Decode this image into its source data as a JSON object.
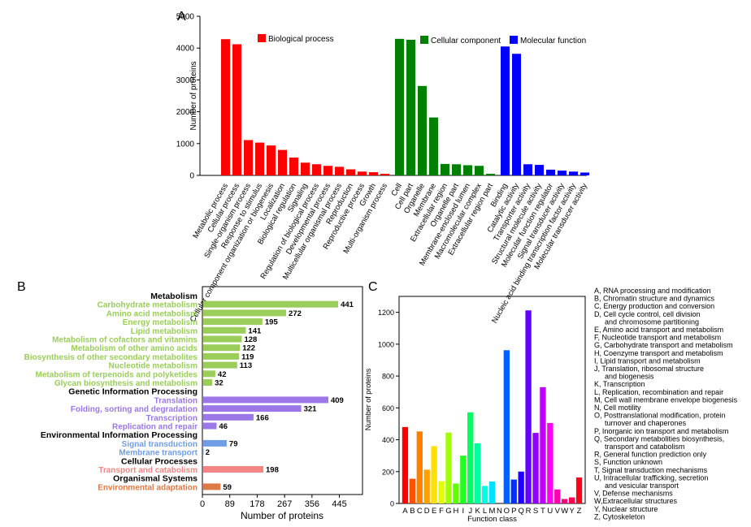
{
  "chart_data": [
    {
      "panel": "A",
      "type": "bar",
      "ylabel": "Number of proteins",
      "ylim": [
        0,
        5000
      ],
      "yticks": [
        "0",
        "1000",
        "2000",
        "3000",
        "4000",
        "5000"
      ],
      "legend": [
        {
          "label": "Biological process",
          "color": "#ff0000"
        },
        {
          "label": "Cellular component",
          "color": "#008000"
        },
        {
          "label": "Molecular function",
          "color": "#0000ff"
        }
      ],
      "groups": [
        {
          "name": "Biological process",
          "color": "#ff0000",
          "categories": [
            "Metabolic process",
            "Cellular process",
            "Single-organism process",
            "Response to stimulus",
            "Cellular component organization or biogenesis",
            "Localization",
            "Biological regulation",
            "Signaling",
            "Regulation of biological process",
            "Developmental process",
            "Multicellular organismal process",
            "Reproduction",
            "Reproductive process",
            "Growth",
            "Multi-organism process"
          ],
          "values": [
            4280,
            4120,
            1110,
            1030,
            940,
            800,
            560,
            400,
            350,
            300,
            270,
            190,
            120,
            100,
            50
          ]
        },
        {
          "name": "Cellular component",
          "color": "#008000",
          "categories": [
            "Cell",
            "Cell part",
            "Organelle",
            "Membrane",
            "Extracellular region",
            "Organelle part",
            "Membrane-enclosed lumen",
            "Macromolecular complex",
            "Extracellular region part"
          ],
          "values": [
            4290,
            4260,
            2810,
            1820,
            360,
            350,
            320,
            300,
            50
          ]
        },
        {
          "name": "Molecular function",
          "color": "#0000ff",
          "categories": [
            "Binding",
            "Catalytic activity",
            "Transporter activity",
            "Structural molecule activity",
            "Molecular function regulator",
            "Signal transducer activity",
            "Nucleic acid binding transcription factor activity",
            "Molecular transducer activity"
          ],
          "values": [
            4050,
            3820,
            350,
            330,
            180,
            150,
            120,
            90
          ]
        }
      ]
    },
    {
      "panel": "B",
      "type": "bar",
      "orientation": "horizontal",
      "xlabel": "Number of proteins",
      "xticks": [
        0,
        89,
        178,
        267,
        356,
        445
      ],
      "xlim": [
        0,
        520
      ],
      "groups": [
        {
          "header": "Metabolism",
          "color": "#9acd5a",
          "items": [
            {
              "label": "Carbohydrate metabolism",
              "value": 441
            },
            {
              "label": "Amino acid metabolism",
              "value": 272
            },
            {
              "label": "Energy metabolism",
              "value": 195
            },
            {
              "label": "Lipid metabolism",
              "value": 141
            },
            {
              "label": "Metabolism of cofactors and vitamins",
              "value": 128
            },
            {
              "label": "Metabolism of other amino acids",
              "value": 122
            },
            {
              "label": "Biosynthesis of other secondary metabolites",
              "value": 119
            },
            {
              "label": "Nucleotide metabolism",
              "value": 113
            },
            {
              "label": "Metabolism of terpenoids and polyketides",
              "value": 42
            },
            {
              "label": "Glycan biosynthesis and metabolism",
              "value": 32
            }
          ]
        },
        {
          "header": "Genetic Information Processing",
          "color": "#9b77e8",
          "items": [
            {
              "label": "Translation",
              "value": 409
            },
            {
              "label": "Folding, sorting and degradation",
              "value": 321
            },
            {
              "label": "Transcription",
              "value": 166
            },
            {
              "label": "Replication and repair",
              "value": 46
            }
          ]
        },
        {
          "header": "Environmental Information Processing",
          "color": "#6f9ee6",
          "items": [
            {
              "label": "Signal transduction",
              "value": 79
            },
            {
              "label": "Membrane transport",
              "value": 2
            }
          ]
        },
        {
          "header": "Cellular Processes",
          "color": "#f58484",
          "items": [
            {
              "label": "Transport and catabolism",
              "value": 198
            }
          ]
        },
        {
          "header": "Organismal Systems",
          "color": "#e07a45",
          "items": [
            {
              "label": "Environmental adaptation",
              "value": 59
            }
          ]
        }
      ]
    },
    {
      "panel": "C",
      "type": "bar",
      "xlabel": "Function class",
      "ylabel": "Number of proteins",
      "ylim": [
        0,
        1300
      ],
      "yticks": [
        0,
        200,
        400,
        600,
        800,
        1000,
        1200
      ],
      "categories": [
        "A",
        "B",
        "C",
        "D",
        "E",
        "F",
        "G",
        "H",
        "I",
        "J",
        "K",
        "L",
        "M",
        "N",
        "O",
        "P",
        "Q",
        "R",
        "S",
        "T",
        "U",
        "V",
        "W",
        "Y",
        "Z"
      ],
      "values": [
        480,
        155,
        452,
        212,
        360,
        140,
        445,
        125,
        300,
        572,
        377,
        110,
        138,
        0,
        962,
        150,
        200,
        1212,
        443,
        730,
        505,
        88,
        28,
        38,
        163
      ],
      "colors": [
        "#ff0000",
        "#ff5000",
        "#ff8000",
        "#ffa000",
        "#ffe000",
        "#e0ff00",
        "#a0ff00",
        "#60ff00",
        "#20ff20",
        "#00ff60",
        "#00ffa0",
        "#00ffe0",
        "#00e0ff",
        "#00a0ff",
        "#0060ff",
        "#0030ff",
        "#2000ff",
        "#6000ff",
        "#9000ff",
        "#c000ff",
        "#ff00f0",
        "#ff00b0",
        "#ff0080",
        "#ff0050",
        "#ff0020"
      ],
      "legend": [
        "A, RNA processing and modification",
        "B, Chromatin structure and dynamics",
        "C, Energy production and conversion",
        "D, Cell cycle control, cell division",
        "and chromosome partitioning",
        "E, Amino acid transport and metabolism",
        "F, Nucleotide transport and metabolism",
        "G, Carbohydrate transport and metabolism",
        "H, Coenzyme transport and metabolism",
        "I,  Lipid transport and metabolism",
        "J,  Translation, ribosomal structure",
        "and biogenesis",
        "K, Transcription",
        "L, Replication, recombination and repair",
        "M, Cell wall membrane envelope biogenesis",
        "N, Cell motility",
        "O, Posttranslational modification, protein",
        "turnover and chaperones",
        "P, Inorganic ion transport and metabolism",
        "Q, Secondary metabolities biosynthesis,",
        "transport and catabolism",
        "R, General function prediction only",
        "S, Function unknown",
        "T, Signal transduction mechanisms",
        "U, Intracellular trafficking, secretion",
        "and vesicular transport",
        "V, Defense mechanisms",
        "W,Extracellular structures",
        "Y, Nuclear structure",
        "Z, Cytoskeleton"
      ]
    }
  ]
}
